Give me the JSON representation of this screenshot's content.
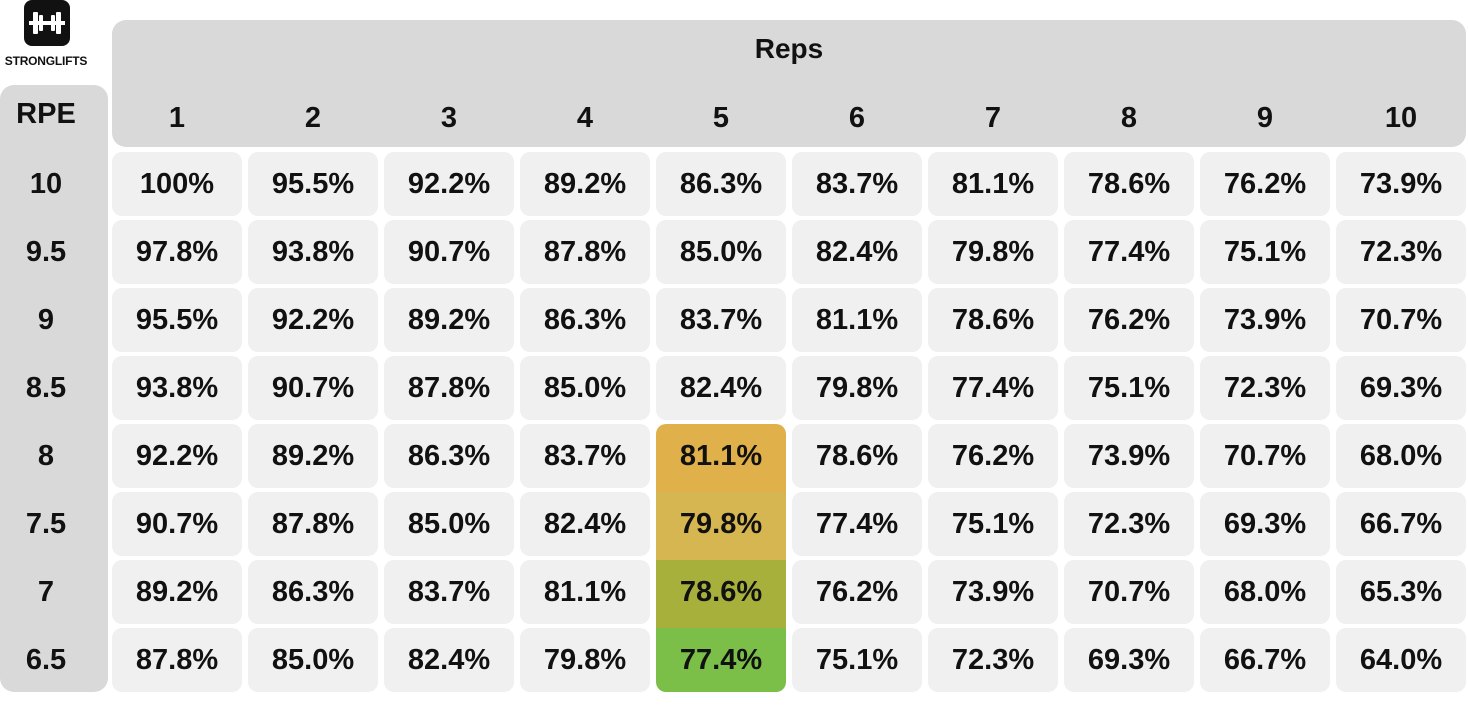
{
  "logo": {
    "text": "STRONGLIFTS",
    "icon": "barbell-icon"
  },
  "chart_data": {
    "type": "table",
    "col_header_title": "Reps",
    "row_header_title": "RPE",
    "columns": [
      "1",
      "2",
      "3",
      "4",
      "5",
      "6",
      "7",
      "8",
      "9",
      "10"
    ],
    "rows": [
      "10",
      "9.5",
      "9",
      "8.5",
      "8",
      "7.5",
      "7",
      "6.5"
    ],
    "cells": [
      [
        "100%",
        "95.5%",
        "92.2%",
        "89.2%",
        "86.3%",
        "83.7%",
        "81.1%",
        "78.6%",
        "76.2%",
        "73.9%"
      ],
      [
        "97.8%",
        "93.8%",
        "90.7%",
        "87.8%",
        "85.0%",
        "82.4%",
        "79.8%",
        "77.4%",
        "75.1%",
        "72.3%"
      ],
      [
        "95.5%",
        "92.2%",
        "89.2%",
        "86.3%",
        "83.7%",
        "81.1%",
        "78.6%",
        "76.2%",
        "73.9%",
        "70.7%"
      ],
      [
        "93.8%",
        "90.7%",
        "87.8%",
        "85.0%",
        "82.4%",
        "79.8%",
        "77.4%",
        "75.1%",
        "72.3%",
        "69.3%"
      ],
      [
        "92.2%",
        "89.2%",
        "86.3%",
        "83.7%",
        "81.1%",
        "78.6%",
        "76.2%",
        "73.9%",
        "70.7%",
        "68.0%"
      ],
      [
        "90.7%",
        "87.8%",
        "85.0%",
        "82.4%",
        "79.8%",
        "77.4%",
        "75.1%",
        "72.3%",
        "69.3%",
        "66.7%"
      ],
      [
        "89.2%",
        "86.3%",
        "83.7%",
        "81.1%",
        "78.6%",
        "76.2%",
        "73.9%",
        "70.7%",
        "68.0%",
        "65.3%"
      ],
      [
        "87.8%",
        "85.0%",
        "82.4%",
        "79.8%",
        "77.4%",
        "75.1%",
        "72.3%",
        "69.3%",
        "66.7%",
        "64.0%"
      ]
    ],
    "highlighted_cells": [
      {
        "row": 4,
        "col": 4,
        "color": "#e0b04a"
      },
      {
        "row": 5,
        "col": 4,
        "color": "#d6b650"
      },
      {
        "row": 6,
        "col": 4,
        "color": "#a8b03c"
      },
      {
        "row": 7,
        "col": 4,
        "color": "#7bbf48"
      }
    ],
    "colors": {
      "header_bg": "#d9d9d9",
      "cell_bg": "#f0f0f0",
      "text": "#111111"
    }
  }
}
